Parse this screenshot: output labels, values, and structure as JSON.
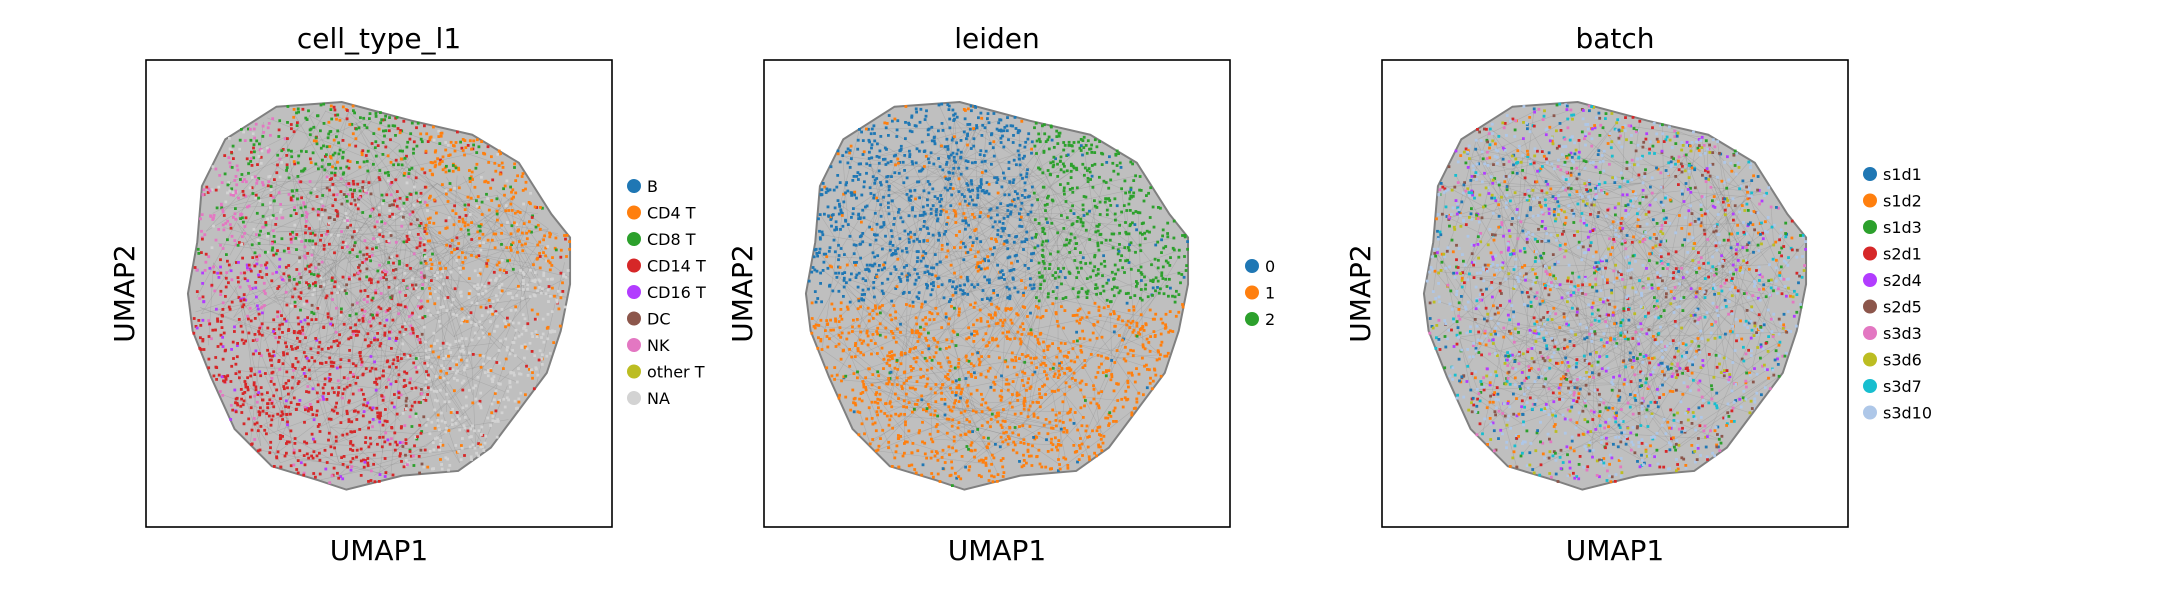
{
  "chart_data": [
    {
      "type": "scatter",
      "title": "cell_type_l1",
      "xlabel": "UMAP1",
      "ylabel": "UMAP2",
      "ticks": "none",
      "edges_drawn": true,
      "edge_color": "#808080",
      "legend_position": "right",
      "categories": [
        "B",
        "CD4 T",
        "CD8 T",
        "CD14 T",
        "CD16 T",
        "DC",
        "NK",
        "other T",
        "NA"
      ],
      "colors": [
        "#1f77b4",
        "#ff7f0e",
        "#2ca02c",
        "#d62728",
        "#b23cff",
        "#8c564b",
        "#e377c2",
        "#bcbd22",
        "#d3d3d3"
      ]
    },
    {
      "type": "scatter",
      "title": "leiden",
      "xlabel": "UMAP1",
      "ylabel": "UMAP2",
      "ticks": "none",
      "edges_drawn": true,
      "edge_color": "#808080",
      "legend_position": "right",
      "categories": [
        "0",
        "1",
        "2"
      ],
      "colors": [
        "#1f77b4",
        "#ff7f0e",
        "#2ca02c"
      ]
    },
    {
      "type": "scatter",
      "title": "batch",
      "xlabel": "UMAP1",
      "ylabel": "UMAP2",
      "ticks": "none",
      "edges_drawn": true,
      "edge_color": "#808080",
      "legend_position": "right",
      "categories": [
        "s1d1",
        "s1d2",
        "s1d3",
        "s2d1",
        "s2d4",
        "s2d5",
        "s3d3",
        "s3d6",
        "s3d7",
        "s3d10"
      ],
      "colors": [
        "#1f77b4",
        "#ff7f0e",
        "#2ca02c",
        "#d62728",
        "#b23cff",
        "#8c564b",
        "#e377c2",
        "#bcbd22",
        "#17becf",
        "#aec7e8"
      ]
    }
  ]
}
